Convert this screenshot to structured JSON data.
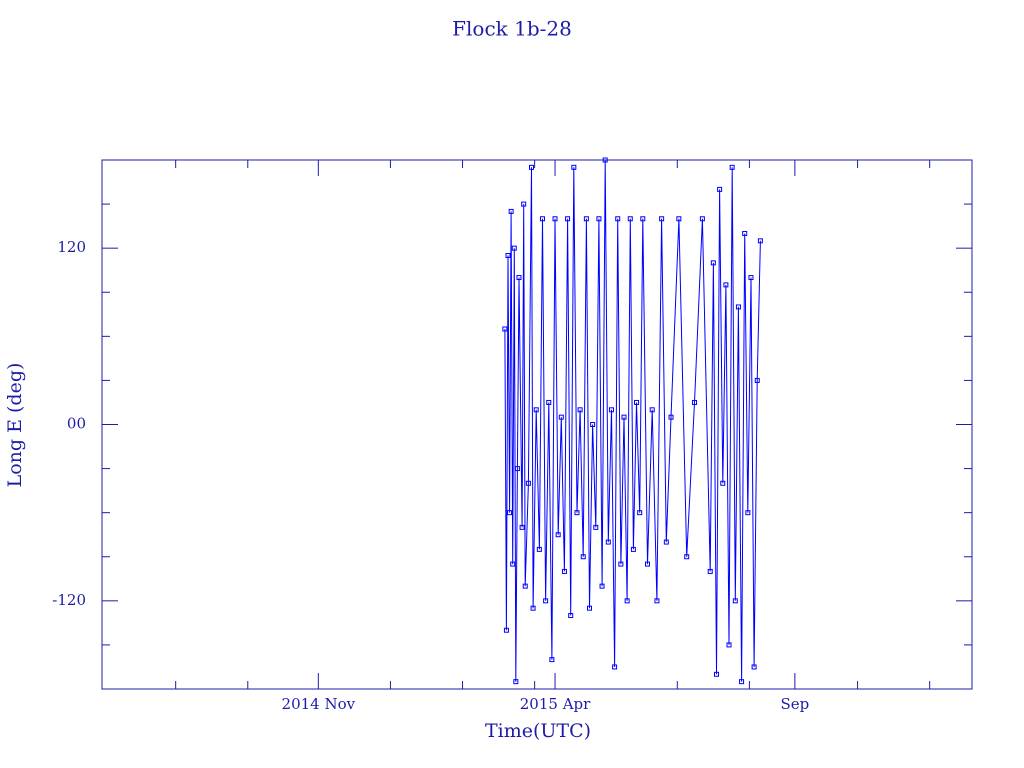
{
  "chart_data": {
    "type": "line",
    "title": "Flock 1b-28",
    "xlabel": "Time(UTC)",
    "ylabel": "Long E (deg)",
    "xlim": [
      -138,
      417
    ],
    "ylim": [
      -180,
      180
    ],
    "xticks": [
      {
        "value": 0,
        "label": "2014 Nov"
      },
      {
        "value": 151,
        "label": "2015 Apr"
      },
      {
        "value": 304,
        "label": "Sep"
      }
    ],
    "xticks_minor": [
      -91,
      -45,
      46,
      92,
      138,
      229,
      275,
      344,
      390
    ],
    "yticks": [
      -120,
      {
        "value": 0,
        "label": "00"
      },
      120
    ],
    "yticks_minor": [
      -150,
      -90,
      -60,
      -30,
      30,
      60,
      90,
      150
    ],
    "series": [
      {
        "name": "Flock 1b-28",
        "color": "#0000ff",
        "x": [
          119,
          120,
          121,
          122,
          123,
          124,
          125,
          126,
          127,
          128,
          130,
          131,
          132,
          134,
          136,
          137,
          139,
          141,
          143,
          145,
          147,
          149,
          151,
          153,
          155,
          157,
          159,
          161,
          163,
          165,
          167,
          169,
          171,
          173,
          175,
          177,
          179,
          181,
          183,
          185,
          187,
          189,
          191,
          193,
          195,
          197,
          199,
          201,
          203,
          205,
          207,
          210,
          213,
          216,
          219,
          222,
          225,
          230,
          235,
          240,
          245,
          250,
          252,
          254,
          256,
          258,
          260,
          262,
          264,
          266,
          268,
          270,
          272,
          274,
          276,
          278,
          280,
          282
        ],
        "values": [
          65,
          -140,
          115,
          -60,
          145,
          -95,
          120,
          -175,
          -30,
          100,
          -70,
          150,
          -110,
          -40,
          175,
          -125,
          10,
          -85,
          140,
          -120,
          15,
          -160,
          140,
          -75,
          5,
          -100,
          140,
          -130,
          175,
          -60,
          10,
          -90,
          140,
          -125,
          0,
          -70,
          140,
          -110,
          180,
          -80,
          10,
          -165,
          140,
          -95,
          5,
          -120,
          140,
          -85,
          15,
          -60,
          140,
          -95,
          10,
          -120,
          140,
          -80,
          5,
          140,
          -90,
          15,
          140,
          -100,
          110,
          -170,
          160,
          -40,
          95,
          -150,
          175,
          -120,
          80,
          -175,
          130,
          -60,
          100,
          -165,
          30,
          125
        ]
      }
    ]
  }
}
